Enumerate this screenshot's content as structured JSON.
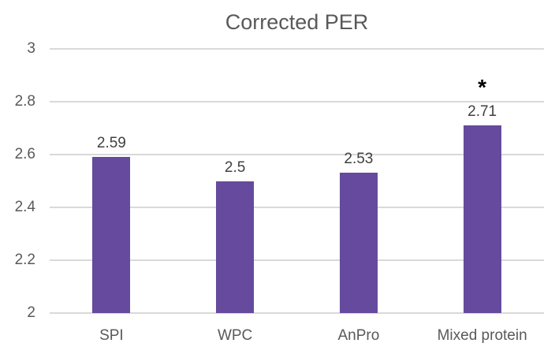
{
  "chart_data": {
    "type": "bar",
    "title": "Corrected PER",
    "categories": [
      "SPI",
      "WPC",
      "AnPro",
      "Mixed protein"
    ],
    "values": [
      2.59,
      2.5,
      2.53,
      2.71
    ],
    "data_labels": [
      "2.59",
      "2.5",
      "2.53",
      "2.71"
    ],
    "annotations": [
      "",
      "",
      "",
      "*"
    ],
    "ylim": [
      2,
      3
    ],
    "yticks": [
      2,
      2.2,
      2.4,
      2.6,
      2.8,
      3
    ],
    "ytick_labels": [
      "2",
      "2.2",
      "2.4",
      "2.6",
      "2.8",
      "3"
    ],
    "grid": true,
    "legend": "none",
    "colors": {
      "bar": "#654A9D",
      "title": "#595959",
      "axis_labels": "#595959",
      "data_labels": "#404040",
      "gridline": "#D9D9D9",
      "annotation": "#000000",
      "background": "#FFFFFF"
    }
  }
}
